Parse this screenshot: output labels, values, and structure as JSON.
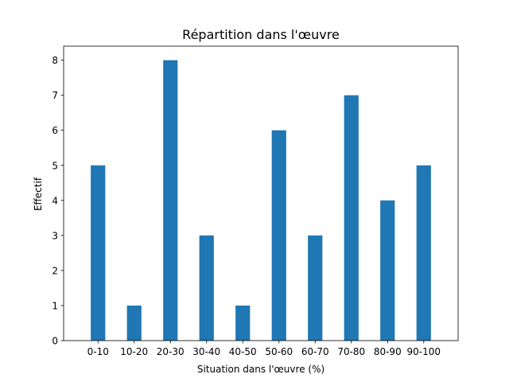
{
  "chart_data": {
    "type": "bar",
    "title": "Répartition dans l'œuvre",
    "xlabel": "Situation dans l'œuvre (%)",
    "ylabel": "Effectif",
    "categories": [
      "0-10",
      "10-20",
      "20-30",
      "30-40",
      "40-50",
      "50-60",
      "60-70",
      "70-80",
      "80-90",
      "90-100"
    ],
    "values": [
      5,
      1,
      8,
      3,
      1,
      6,
      3,
      7,
      4,
      5
    ],
    "ylim": [
      0,
      8.4
    ],
    "yticks": [
      0,
      1,
      2,
      3,
      4,
      5,
      6,
      7,
      8
    ],
    "bar_color": "#1f77b4",
    "grid": false
  }
}
